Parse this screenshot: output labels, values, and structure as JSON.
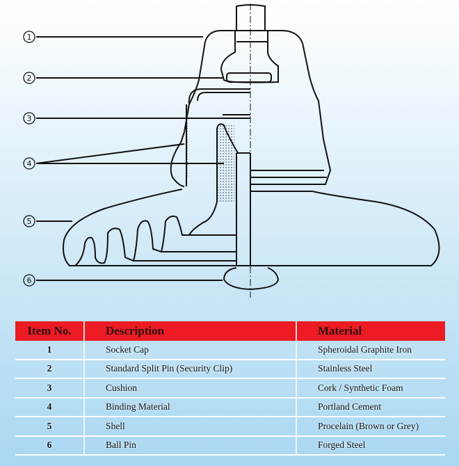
{
  "diagram": {
    "callouts": [
      "1",
      "2",
      "3",
      "4",
      "5",
      "6"
    ]
  },
  "table": {
    "headers": [
      "Item No.",
      "Description",
      "Material"
    ],
    "header_color": "#ec1b24",
    "rows": [
      {
        "item": "1",
        "description": "Socket Cap",
        "material": "Spheroidal Graphite Iron"
      },
      {
        "item": "2",
        "description": "Standard Split Pin (Security Clip)",
        "material": "Stainless Steel"
      },
      {
        "item": "3",
        "description": "Cushion",
        "material": "Cork / Synthetic Foam"
      },
      {
        "item": "4",
        "description": "Binding Material",
        "material": "Portland Cement"
      },
      {
        "item": "5",
        "description": "Shell",
        "material": "Procelain (Brown or Grey)"
      },
      {
        "item": "6",
        "description": "Ball Pin",
        "material": "Forged Steel"
      }
    ]
  }
}
